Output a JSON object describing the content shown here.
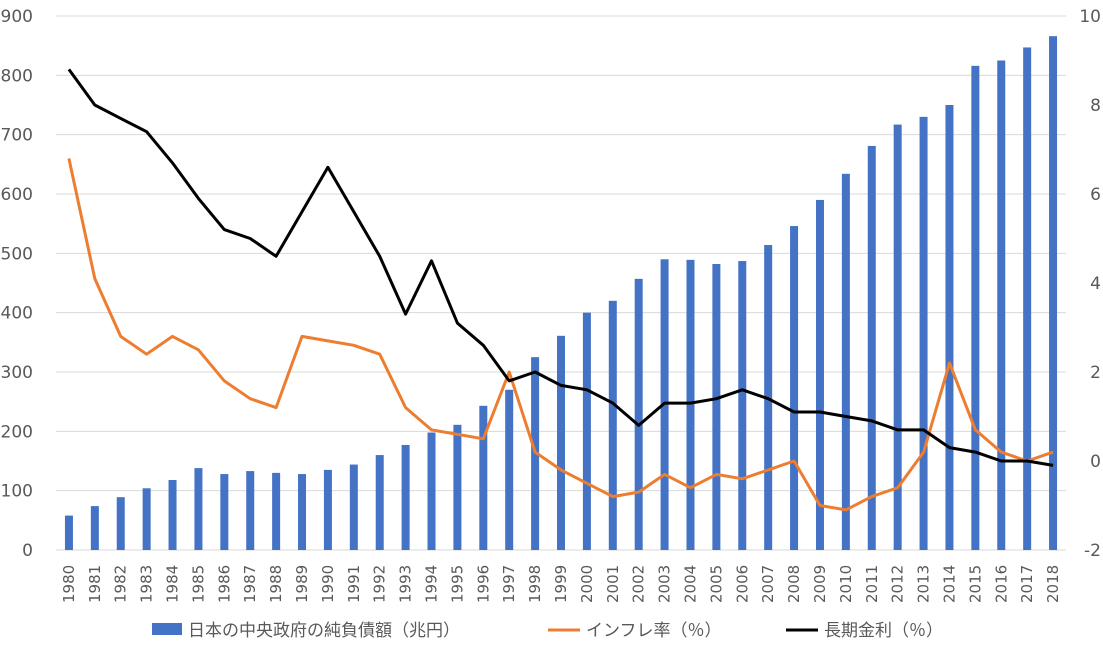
{
  "chart_data": {
    "type": "bar+line",
    "categories": [
      "1980",
      "1981",
      "1982",
      "1983",
      "1984",
      "1985",
      "1986",
      "1987",
      "1988",
      "1989",
      "1990",
      "1991",
      "1992",
      "1993",
      "1994",
      "1995",
      "1996",
      "1997",
      "1998",
      "1999",
      "2000",
      "2001",
      "2002",
      "2003",
      "2004",
      "2005",
      "2006",
      "2007",
      "2008",
      "2009",
      "2010",
      "2011",
      "2012",
      "2013",
      "2014",
      "2015",
      "2016",
      "2017",
      "2018"
    ],
    "bar_series": {
      "name": "日本の中央政府の純負債額（兆円）",
      "axis": "left",
      "color": "#4472C4",
      "values": [
        58,
        74,
        89,
        104,
        118,
        138,
        128,
        133,
        130,
        128,
        135,
        144,
        160,
        177,
        198,
        211,
        243,
        270,
        325,
        361,
        400,
        420,
        457,
        490,
        489,
        482,
        487,
        514,
        546,
        590,
        634,
        681,
        717,
        730,
        750,
        816,
        825,
        847,
        866
      ]
    },
    "line_series": [
      {
        "name": "インフレ率（％）",
        "axis": "right",
        "color": "#ED7D31",
        "values": [
          6.8,
          4.1,
          2.8,
          2.4,
          2.8,
          2.5,
          1.8,
          1.4,
          1.2,
          2.8,
          2.7,
          2.6,
          2.4,
          1.2,
          0.7,
          0.6,
          0.5,
          2.0,
          0.2,
          -0.2,
          -0.5,
          -0.8,
          -0.7,
          -0.3,
          -0.6,
          -0.3,
          -0.4,
          -0.2,
          0.0,
          -1.0,
          -1.1,
          -0.8,
          -0.6,
          0.2,
          2.2,
          0.7,
          0.2,
          0.0,
          0.2
        ]
      },
      {
        "name": "長期金利（％）",
        "axis": "right",
        "color": "#000000",
        "values": [
          8.8,
          8.0,
          7.7,
          7.4,
          6.7,
          5.9,
          5.2,
          5.0,
          4.6,
          5.6,
          6.6,
          5.6,
          4.6,
          3.3,
          4.5,
          3.1,
          2.6,
          1.8,
          2.0,
          1.7,
          1.6,
          1.3,
          0.8,
          1.3,
          1.3,
          1.4,
          1.6,
          1.4,
          1.1,
          1.1,
          1.0,
          0.9,
          0.7,
          0.7,
          0.3,
          0.2,
          0.0,
          0.0,
          -0.1
        ]
      }
    ],
    "y_left": {
      "min": 0,
      "max": 900,
      "ticks": [
        0,
        100,
        200,
        300,
        400,
        500,
        600,
        700,
        800,
        900
      ]
    },
    "y_right": {
      "min": -2,
      "max": 10,
      "ticks": [
        -2,
        0,
        2,
        4,
        6,
        8,
        10
      ]
    },
    "gridlines": true,
    "legend_position": "bottom",
    "gridline_color": "#D9D9D9",
    "text_color": "#595959"
  }
}
